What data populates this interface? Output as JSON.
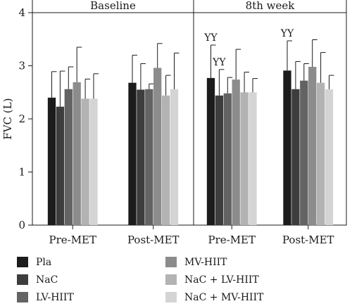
{
  "chart_data": {
    "type": "bar",
    "ylabel": "FVC (L)",
    "ylim": [
      0,
      4
    ],
    "yticks": [
      "0",
      "1",
      "2",
      "3",
      "4"
    ],
    "panels": [
      {
        "title": "Baseline",
        "categories": [
          "Pre-MET",
          "Post-MET"
        ],
        "series": [
          {
            "name": "Pla",
            "values": [
              2.4,
              2.68
            ],
            "errors": [
              0.49,
              0.52
            ]
          },
          {
            "name": "NaC",
            "values": [
              2.23,
              2.55
            ],
            "errors": [
              0.67,
              0.49
            ]
          },
          {
            "name": "LV-HIIT",
            "values": [
              2.56,
              2.56
            ],
            "errors": [
              0.42,
              0.1
            ]
          },
          {
            "name": "MV-HIIT",
            "values": [
              2.69,
              2.96
            ],
            "errors": [
              0.66,
              0.46
            ]
          },
          {
            "name": "NaC + LV-HIIT",
            "values": [
              2.38,
              2.44
            ],
            "errors": [
              0.37,
              0.38
            ]
          },
          {
            "name": "NaC + MV-HIIT",
            "values": [
              2.38,
              2.56
            ],
            "errors": [
              0.47,
              0.68
            ]
          }
        ],
        "annotations": []
      },
      {
        "title": "8th week",
        "categories": [
          "Pre-MET",
          "Post-MET"
        ],
        "series": [
          {
            "name": "Pla",
            "values": [
              2.77,
              2.91
            ],
            "errors": [
              0.62,
              0.56
            ]
          },
          {
            "name": "NaC",
            "values": [
              2.44,
              2.56
            ],
            "errors": [
              0.49,
              0.52
            ]
          },
          {
            "name": "LV-HIIT",
            "values": [
              2.48,
              2.72
            ],
            "errors": [
              0.3,
              0.32
            ]
          },
          {
            "name": "MV-HIIT",
            "values": [
              2.74,
              2.98
            ],
            "errors": [
              0.57,
              0.51
            ]
          },
          {
            "name": "NaC + LV-HIIT",
            "values": [
              2.5,
              2.68
            ],
            "errors": [
              0.38,
              0.57
            ]
          },
          {
            "name": "NaC + MV-HIIT",
            "values": [
              2.5,
              2.56
            ],
            "errors": [
              0.26,
              0.26
            ]
          }
        ],
        "annotations": [
          {
            "category": "Pre-MET",
            "series": "Pla",
            "text": "YY"
          },
          {
            "category": "Pre-MET",
            "series": "NaC",
            "text": "YY"
          },
          {
            "category": "Post-MET",
            "series": "Pla",
            "text": "YY"
          }
        ]
      }
    ],
    "colors": [
      "#1c1c1c",
      "#3d3d3d",
      "#636363",
      "#8c8c8c",
      "#b3b3b3",
      "#d4d4d4"
    ],
    "legend": {
      "placement": "bottom",
      "columns": [
        [
          "Pla",
          "NaC",
          "LV-HIIT"
        ],
        [
          "MV-HIIT",
          "NaC + LV-HIIT",
          "NaC + MV-HIIT"
        ]
      ]
    }
  }
}
